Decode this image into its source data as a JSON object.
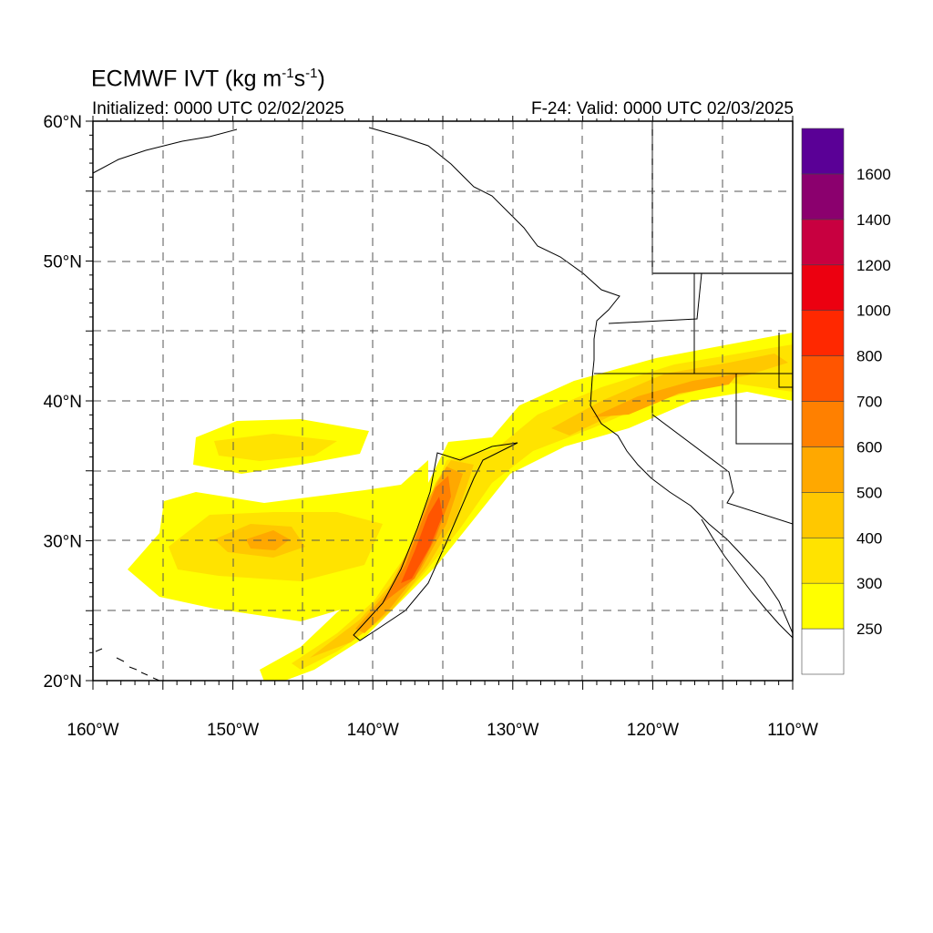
{
  "title": {
    "model": "ECMWF IVT (kg m",
    "exp1": "-1",
    "mid": "s",
    "exp2": "-1",
    "end": ")"
  },
  "initialized": "Initialized: 0000 UTC 02/02/2025",
  "valid": "F-24: Valid: 0000 UTC 02/03/2025",
  "map": {
    "lat_labels": [
      {
        "lat": 60,
        "text": "60°N"
      },
      {
        "lat": 50,
        "text": "50°N"
      },
      {
        "lat": 40,
        "text": "40°N"
      },
      {
        "lat": 30,
        "text": "30°N"
      },
      {
        "lat": 20,
        "text": "20°N"
      }
    ],
    "lon_labels": [
      {
        "lon": -160,
        "text": "160°W"
      },
      {
        "lon": -150,
        "text": "150°W"
      },
      {
        "lon": -140,
        "text": "140°W"
      },
      {
        "lon": -130,
        "text": "130°W"
      },
      {
        "lon": -120,
        "text": "120°W"
      },
      {
        "lon": -110,
        "text": "110°W"
      }
    ],
    "lon_range": [
      -160,
      -110
    ],
    "lat_range": [
      20,
      60
    ],
    "gridline_style": "dashed"
  },
  "colorbar": {
    "bins": [
      {
        "color": "#ffffff"
      },
      {
        "color": "#ffff00"
      },
      {
        "color": "#ffe300"
      },
      {
        "color": "#ffc800"
      },
      {
        "color": "#ffa800"
      },
      {
        "color": "#ff8000"
      },
      {
        "color": "#ff5500"
      },
      {
        "color": "#ff2800"
      },
      {
        "color": "#ec0010"
      },
      {
        "color": "#c80040"
      },
      {
        "color": "#8b006e"
      },
      {
        "color": "#5a0096"
      }
    ],
    "labels": [
      "250",
      "300",
      "400",
      "500",
      "600",
      "700",
      "800",
      "1000",
      "1200",
      "1400",
      "1600"
    ]
  }
}
